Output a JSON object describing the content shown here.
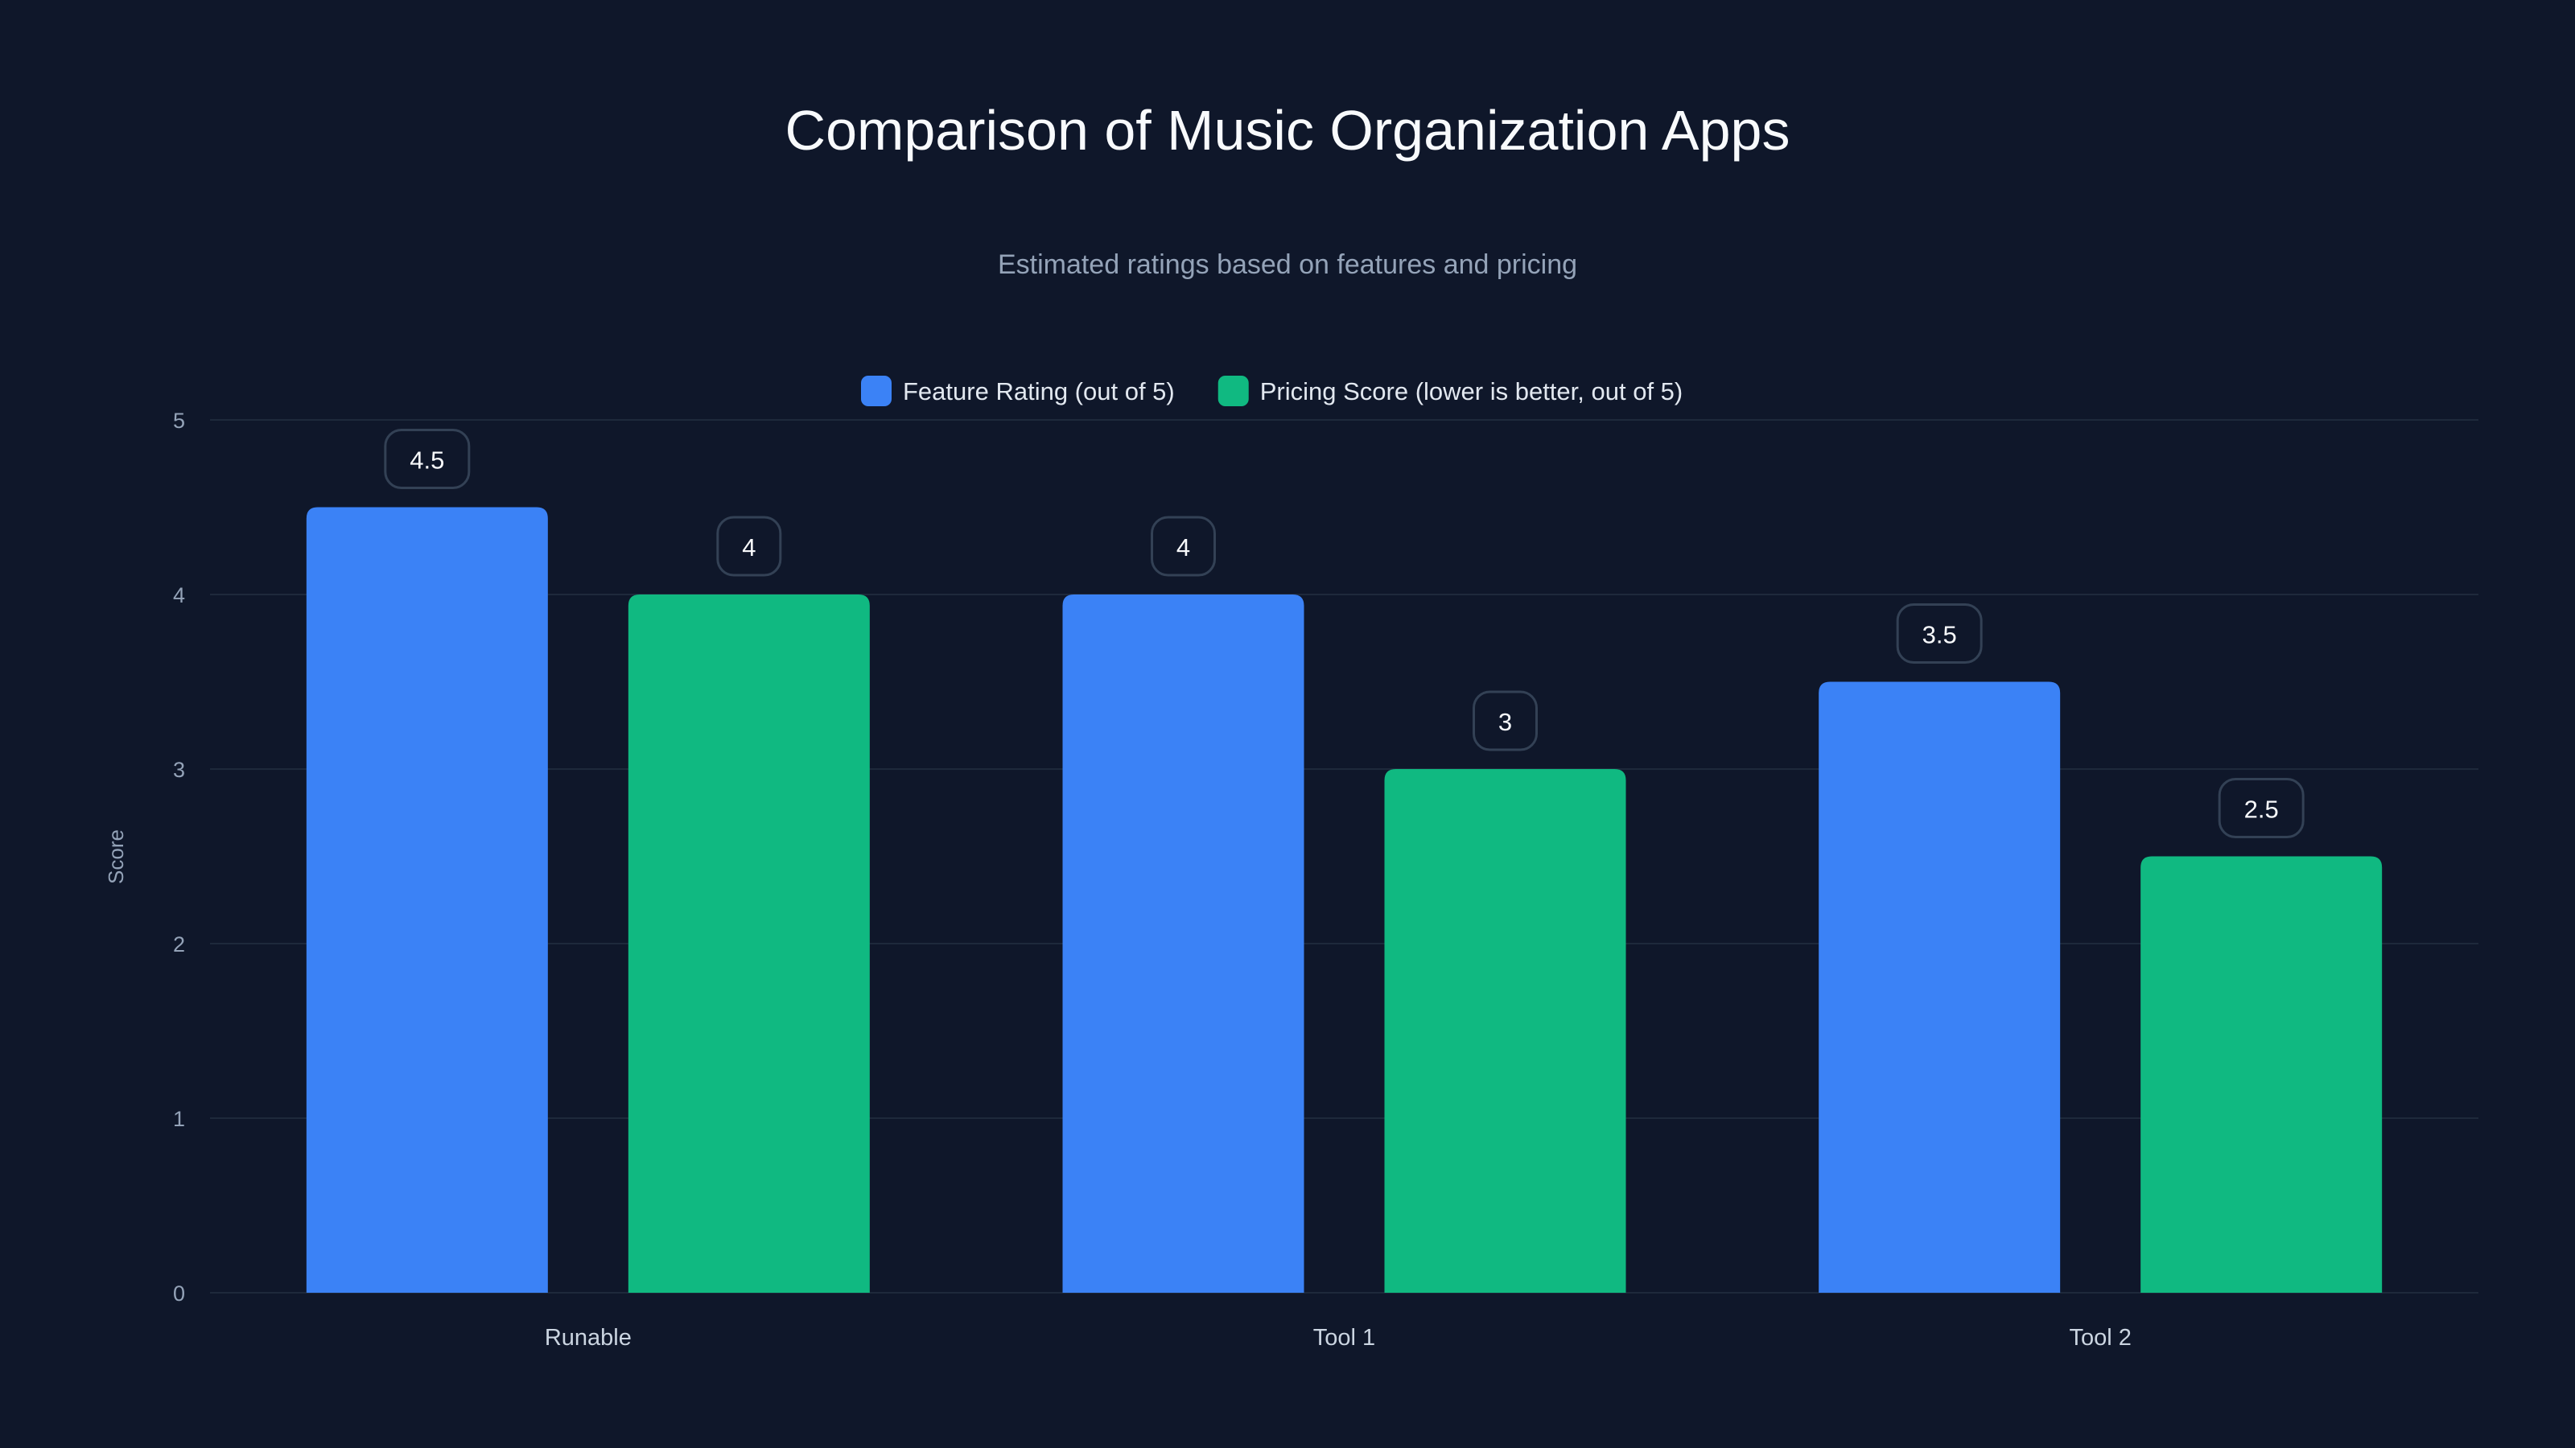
{
  "chart_data": {
    "type": "bar",
    "title": "Comparison of Music Organization Apps",
    "subtitle": "Estimated ratings based on features and pricing",
    "xlabel": "",
    "ylabel": "Score",
    "ylim": [
      0,
      5
    ],
    "yticks": [
      0,
      1,
      2,
      3,
      4,
      5
    ],
    "grid": true,
    "legend_position": "top",
    "categories": [
      "Runable",
      "Tool 1",
      "Tool 2"
    ],
    "series": [
      {
        "name": "Feature Rating (out of 5)",
        "values": [
          4.5,
          4,
          3.5
        ],
        "color": "#3b82f6"
      },
      {
        "name": "Pricing Score (lower is better, out of 5)",
        "values": [
          4,
          3,
          2.5
        ],
        "color": "#10b981"
      }
    ],
    "colors": {
      "background": "#0f172a",
      "grid": "#1e293b",
      "label_border": "#334155",
      "tick_text": "#94a3b8",
      "text": "#f8fafc"
    }
  }
}
